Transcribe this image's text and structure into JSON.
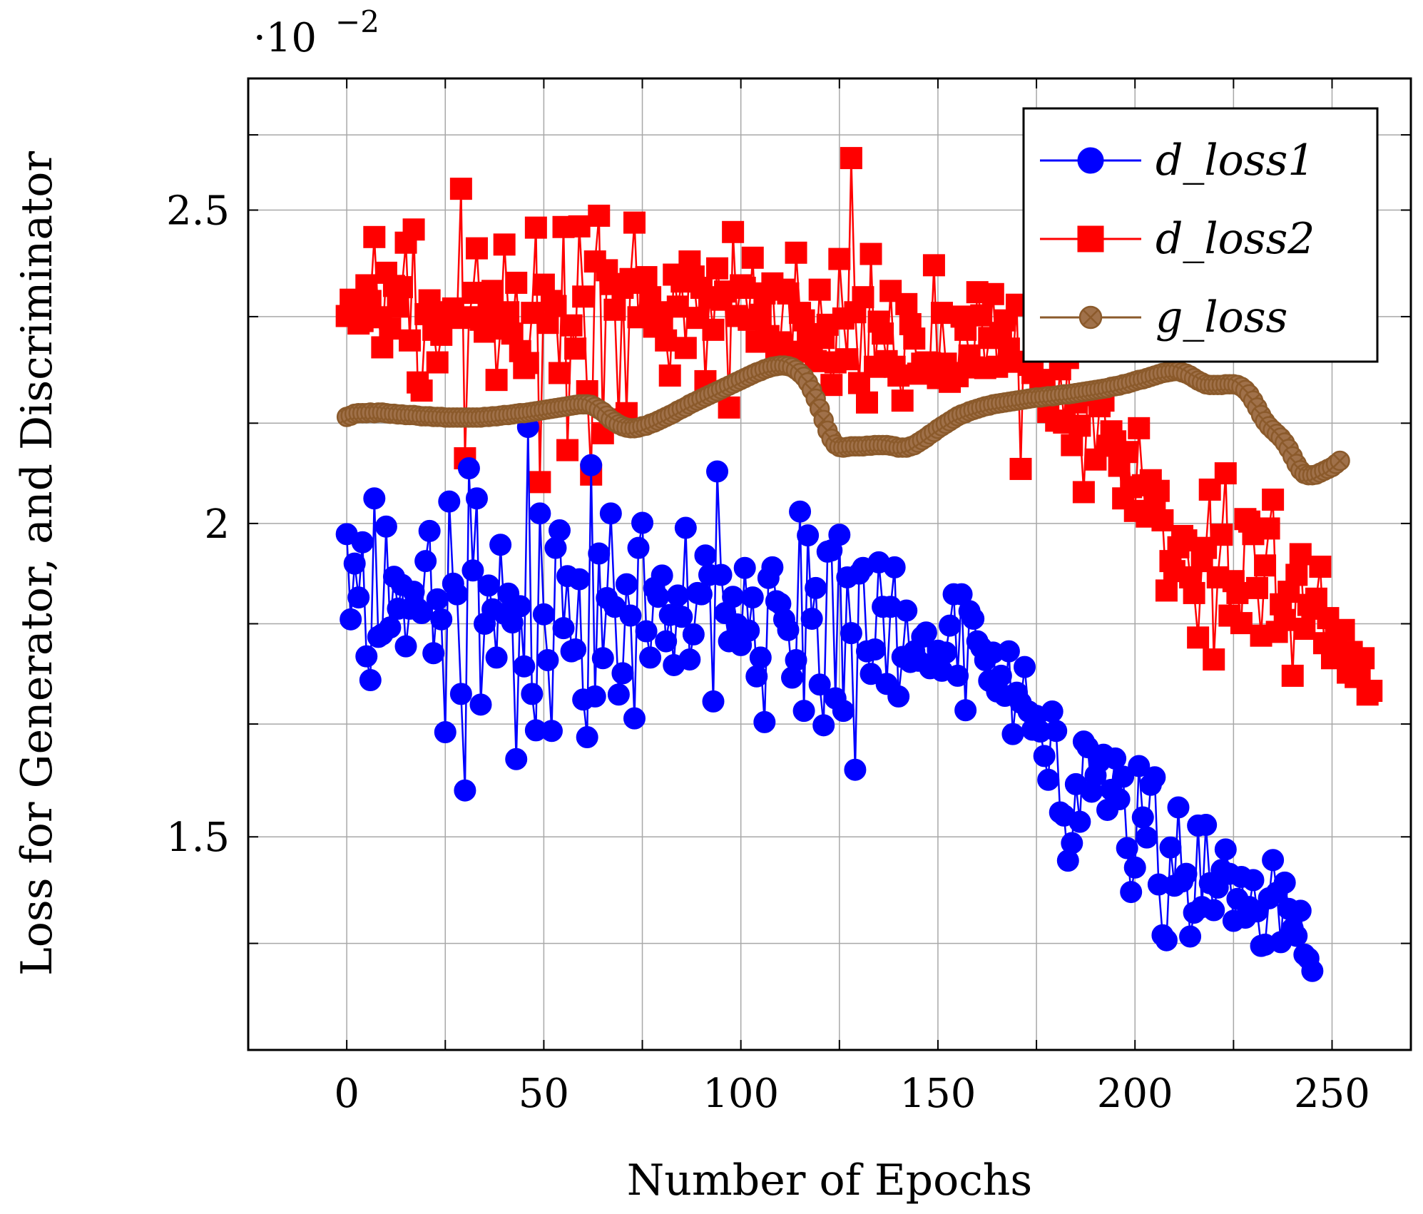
{
  "chart_data": {
    "type": "line",
    "xlabel": "Number of Epochs",
    "ylabel": "Loss for Generator, and Discriminator",
    "y_scale_label_base": "·10",
    "y_scale_label_exp": "−2",
    "xlim": [
      -25,
      270
    ],
    "ylim": [
      1.16,
      2.71
    ],
    "x_ticks": [
      0,
      50,
      100,
      150,
      200,
      250
    ],
    "x_tick_labels": [
      "0",
      "50",
      "100",
      "150",
      "200",
      "250"
    ],
    "y_ticks": [
      1.5,
      2.0,
      2.5
    ],
    "y_tick_labels": [
      "1.5",
      "2",
      "2.5"
    ],
    "x_grid": [
      0,
      25,
      50,
      75,
      100,
      125,
      150,
      175,
      200,
      225,
      250
    ],
    "y_grid": [
      1.33,
      1.5,
      1.68,
      1.84,
      2.0,
      2.16,
      2.33,
      2.5,
      2.62
    ],
    "grid": true,
    "legend_position": "top-right",
    "colors": {
      "d_loss1": "#0000ff",
      "d_loss2": "#ff0000",
      "g_loss": "#8b5a2b"
    },
    "series_names": [
      "d_loss1",
      "d_loss2",
      "g_loss"
    ],
    "series": [
      {
        "name": "d_loss1",
        "marker": "circle",
        "values": [
          1.983,
          1.847,
          1.936,
          1.882,
          1.97,
          1.788,
          1.75,
          2.04,
          1.819,
          1.823,
          1.995,
          1.834,
          1.915,
          1.864,
          1.902,
          1.804,
          1.864,
          1.891,
          1.864,
          1.857,
          1.94,
          1.988,
          1.793,
          1.879,
          1.847,
          1.667,
          2.035,
          1.904,
          1.887,
          1.728,
          1.574,
          2.088,
          1.925,
          2.04,
          1.711,
          1.84,
          1.901,
          1.863,
          1.786,
          1.966,
          1.856,
          1.888,
          1.842,
          1.624,
          1.868,
          1.772,
          2.154,
          1.728,
          1.67,
          2.016,
          1.855,
          1.782,
          1.669,
          1.961,
          1.989,
          1.833,
          1.916,
          1.796,
          1.799,
          1.911,
          1.719,
          1.659,
          2.093,
          1.724,
          1.952,
          1.785,
          1.881,
          2.016,
          1.867,
          1.727,
          1.761,
          1.903,
          1.853,
          1.689,
          1.961,
          2.001,
          1.828,
          1.786,
          1.897,
          1.883,
          1.917,
          1.812,
          1.854,
          1.774,
          1.885,
          1.851,
          1.993,
          1.783,
          1.823,
          1.889,
          1.887,
          1.949,
          1.918,
          1.716,
          2.083,
          1.918,
          1.857,
          1.812,
          1.883,
          1.839,
          1.806,
          1.929,
          1.829,
          1.882,
          1.756,
          1.786,
          1.683,
          1.913,
          1.93,
          1.876,
          1.872,
          1.847,
          1.83,
          1.754,
          1.782,
          2.019,
          1.701,
          1.981,
          1.848,
          1.897,
          1.743,
          1.678,
          1.955,
          1.957,
          1.721,
          1.982,
          1.701,
          1.914,
          1.825,
          1.607,
          1.92,
          1.929,
          1.796,
          1.76,
          1.799,
          1.938,
          1.867,
          1.744,
          1.867,
          1.93,
          1.724,
          1.787,
          1.861,
          1.779,
          1.796,
          1.781,
          1.819,
          1.826,
          1.769,
          1.779,
          1.797,
          1.765,
          1.794,
          1.837,
          1.887,
          1.757,
          1.887,
          1.702,
          1.86,
          1.848,
          1.812,
          1.802,
          1.782,
          1.749,
          1.794,
          1.732,
          1.757,
          1.725,
          1.796,
          1.664,
          1.73,
          1.714,
          1.771,
          1.7,
          1.671,
          1.693,
          1.668,
          1.629,
          1.591,
          1.7,
          1.669,
          1.539,
          1.534,
          1.462,
          1.49,
          1.584,
          1.524,
          1.652,
          1.643,
          1.572,
          1.598,
          1.62,
          1.631,
          1.543,
          1.575,
          1.625,
          1.56,
          1.596,
          1.482,
          1.412,
          1.451,
          1.613,
          1.531,
          1.499,
          1.583,
          1.595,
          1.424,
          1.343,
          1.335,
          1.483,
          1.422,
          1.547,
          1.429,
          1.441,
          1.341,
          1.379,
          1.518,
          1.388,
          1.519,
          1.426,
          1.383,
          1.419,
          1.447,
          1.48,
          1.441,
          1.366,
          1.401,
          1.436,
          1.371,
          1.388,
          1.431,
          1.381,
          1.326,
          1.328,
          1.402,
          1.463,
          1.411,
          1.332,
          1.427,
          1.385,
          1.354,
          1.342,
          1.382,
          1.312,
          1.306,
          1.286
        ]
      },
      {
        "name": "d_loss2",
        "marker": "square",
        "values": [
          2.331,
          2.357,
          2.339,
          2.319,
          2.323,
          2.38,
          2.355,
          2.457,
          2.329,
          2.281,
          2.4,
          2.311,
          2.379,
          2.346,
          2.377,
          2.448,
          2.292,
          2.469,
          2.225,
          2.212,
          2.334,
          2.356,
          2.309,
          2.257,
          2.301,
          2.334,
          2.337,
          2.343,
          2.328,
          2.534,
          2.104,
          2.329,
          2.368,
          2.439,
          2.325,
          2.306,
          2.338,
          2.371,
          2.229,
          2.311,
          2.445,
          2.337,
          2.303,
          2.384,
          2.275,
          2.248,
          2.256,
          2.336,
          2.472,
          2.066,
          2.381,
          2.32,
          2.355,
          2.347,
          2.24,
          2.473,
          2.117,
          2.316,
          2.279,
          2.474,
          2.362,
          2.211,
          2.078,
          2.418,
          2.491,
          2.144,
          2.404,
          2.382,
          2.341,
          2.166,
          2.376,
          2.176,
          2.39,
          2.48,
          2.329,
          2.384,
          2.393,
          2.361,
          2.314,
          2.337,
          2.316,
          2.292,
          2.236,
          2.397,
          2.346,
          2.386,
          2.28,
          2.418,
          2.394,
          2.328,
          2.376,
          2.227,
          2.361,
          2.309,
          2.407,
          2.357,
          2.37,
          2.185,
          2.465,
          2.331,
          2.38,
          2.376,
          2.325,
          2.424,
          2.29,
          2.333,
          2.367,
          2.299,
          2.383,
          2.272,
          2.289,
          2.373,
          2.367,
          2.274,
          2.432,
          2.336,
          2.324,
          2.302,
          2.274,
          2.259,
          2.373,
          2.296,
          2.317,
          2.221,
          2.257,
          2.422,
          2.327,
          2.262,
          2.583,
          2.337,
          2.224,
          2.361,
          2.193,
          2.43,
          2.25,
          2.322,
          2.303,
          2.259,
          2.371,
          2.25,
          2.236,
          2.196,
          2.35,
          2.318,
          2.295,
          2.239,
          2.255,
          2.257,
          2.256,
          2.412,
          2.232,
          2.336,
          2.255,
          2.226,
          2.24,
          2.235,
          2.33,
          2.309,
          2.268,
          2.249,
          2.369,
          2.332,
          2.248,
          2.296,
          2.366,
          2.25,
          2.304,
          2.324,
          2.279,
          2.258,
          2.349,
          2.087,
          2.348,
          2.253,
          2.24,
          2.284,
          2.229,
          2.212,
          2.178,
          2.317,
          2.164,
          2.246,
          2.161,
          2.264,
          2.125,
          2.193,
          2.156,
          2.05,
          2.205,
          2.205,
          2.102,
          2.187,
          2.196,
          2.124,
          2.147,
          2.131,
          2.092,
          2.04,
          2.114,
          2.058,
          2.02,
          2.152,
          2.061,
          2.011,
          2.069,
          2.04,
          2.052,
          2.005,
          1.893,
          1.94,
          1.924,
          1.962,
          1.98,
          1.973,
          1.914,
          1.889,
          1.818,
          1.94,
          1.961,
          2.054,
          1.783,
          1.914,
          1.982,
          2.08,
          1.853,
          1.908,
          1.889,
          1.841,
          2.007,
          2.003,
          1.983,
          1.897,
          1.821,
          1.933,
          1.992,
          2.038,
          1.827,
          1.871,
          1.846,
          1.891,
          1.757,
          1.918,
          1.951,
          1.832,
          1.87,
          1.864,
          1.88,
          1.931,
          1.809,
          1.849,
          1.785,
          1.814,
          1.787,
          1.83,
          1.762,
          1.795,
          1.755,
          1.759,
          1.785,
          1.727,
          1.733
        ]
      },
      {
        "name": "g_loss",
        "marker": "circle-x",
        "values": [
          2.17,
          2.172,
          2.175,
          2.176,
          2.176,
          2.176,
          2.177,
          2.176,
          2.177,
          2.177,
          2.176,
          2.175,
          2.175,
          2.174,
          2.174,
          2.173,
          2.173,
          2.173,
          2.172,
          2.171,
          2.171,
          2.171,
          2.17,
          2.17,
          2.17,
          2.169,
          2.169,
          2.169,
          2.169,
          2.169,
          2.169,
          2.169,
          2.169,
          2.169,
          2.169,
          2.17,
          2.17,
          2.171,
          2.171,
          2.172,
          2.173,
          2.173,
          2.174,
          2.175,
          2.176,
          2.176,
          2.177,
          2.178,
          2.179,
          2.18,
          2.181,
          2.182,
          2.183,
          2.184,
          2.185,
          2.186,
          2.187,
          2.188,
          2.189,
          2.19,
          2.19,
          2.19,
          2.189,
          2.186,
          2.182,
          2.178,
          2.172,
          2.166,
          2.162,
          2.158,
          2.155,
          2.153,
          2.152,
          2.152,
          2.153,
          2.155,
          2.156,
          2.159,
          2.161,
          2.164,
          2.167,
          2.17,
          2.173,
          2.176,
          2.18,
          2.183,
          2.186,
          2.19,
          2.193,
          2.196,
          2.199,
          2.202,
          2.205,
          2.208,
          2.211,
          2.214,
          2.217,
          2.22,
          2.223,
          2.226,
          2.229,
          2.232,
          2.235,
          2.238,
          2.241,
          2.243,
          2.246,
          2.248,
          2.25,
          2.251,
          2.252,
          2.252,
          2.251,
          2.249,
          2.245,
          2.24,
          2.234,
          2.225,
          2.213,
          2.199,
          2.183,
          2.165,
          2.148,
          2.135,
          2.126,
          2.122,
          2.121,
          2.122,
          2.123,
          2.123,
          2.123,
          2.123,
          2.124,
          2.124,
          2.125,
          2.125,
          2.125,
          2.125,
          2.124,
          2.123,
          2.121,
          2.121,
          2.121,
          2.123,
          2.125,
          2.129,
          2.133,
          2.137,
          2.142,
          2.146,
          2.151,
          2.155,
          2.159,
          2.163,
          2.167,
          2.171,
          2.174,
          2.176,
          2.179,
          2.181,
          2.183,
          2.185,
          2.187,
          2.188,
          2.19,
          2.191,
          2.192,
          2.193,
          2.194,
          2.195,
          2.196,
          2.197,
          2.198,
          2.199,
          2.2,
          2.201,
          2.201,
          2.202,
          2.203,
          2.203,
          2.204,
          2.205,
          2.206,
          2.206,
          2.207,
          2.208,
          2.209,
          2.21,
          2.211,
          2.212,
          2.213,
          2.214,
          2.215,
          2.216,
          2.218,
          2.219,
          2.22,
          2.222,
          2.223,
          2.225,
          2.227,
          2.229,
          2.23,
          2.232,
          2.234,
          2.236,
          2.238,
          2.24,
          2.241,
          2.242,
          2.243,
          2.243,
          2.241,
          2.239,
          2.236,
          2.232,
          2.228,
          2.225,
          2.222,
          2.221,
          2.221,
          2.221,
          2.221,
          2.222,
          2.222,
          2.222,
          2.221,
          2.218,
          2.213,
          2.206,
          2.196,
          2.185,
          2.173,
          2.163,
          2.155,
          2.149,
          2.143,
          2.137,
          2.129,
          2.119,
          2.107,
          2.095,
          2.085,
          2.079,
          2.077,
          2.077,
          2.078,
          2.081,
          2.084,
          2.087,
          2.09,
          2.095,
          2.1
        ]
      }
    ]
  }
}
